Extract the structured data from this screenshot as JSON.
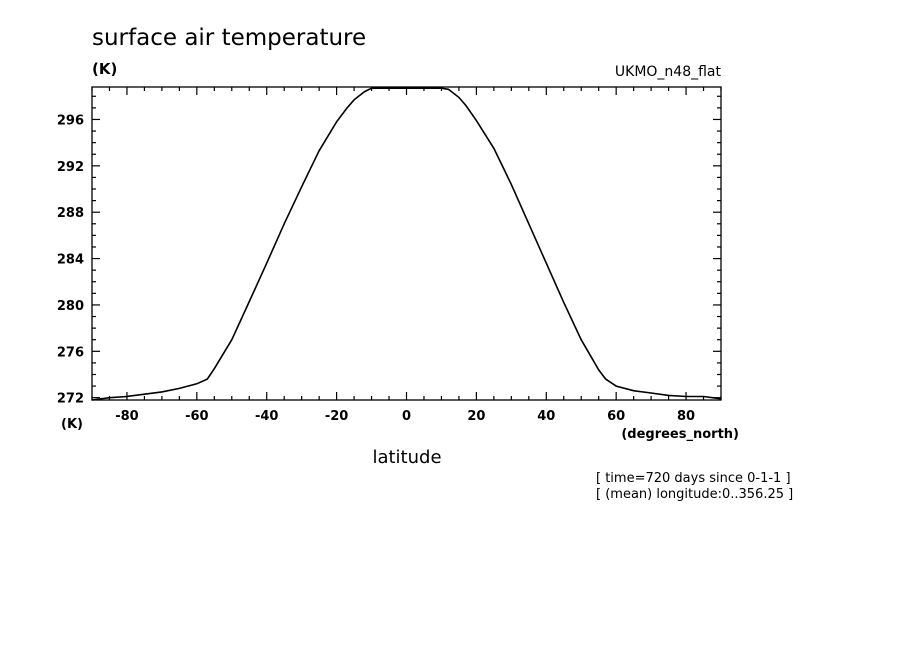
{
  "chart_data": {
    "type": "line",
    "title": "surface air temperature",
    "yunit": "(K)",
    "model_label": "UKMO_n48_flat",
    "xlabel": "latitude",
    "xunit": "(degrees_north)",
    "yunit_bottom": "(K)",
    "notes": [
      "[ time=720 days since 0-1-1 ]",
      "[ (mean) longitude:0..356.25 ]"
    ],
    "xlim": [
      -90,
      90
    ],
    "ylim": [
      271.8,
      298.8
    ],
    "xticks": [
      -80,
      -60,
      -40,
      -20,
      0,
      20,
      40,
      60,
      80
    ],
    "yticks": [
      272,
      276,
      280,
      284,
      288,
      292,
      296
    ],
    "series": [
      {
        "x": [
          -90,
          -85,
          -80,
          -75,
          -70,
          -65,
          -60,
          -57,
          -55,
          -50,
          -45,
          -40,
          -35,
          -30,
          -25,
          -20,
          -17,
          -15,
          -12,
          -10,
          -5,
          0,
          5,
          10,
          12,
          15,
          17,
          20,
          25,
          30,
          35,
          40,
          45,
          50,
          55,
          57,
          60,
          65,
          70,
          75,
          80,
          85,
          90
        ],
        "y": [
          271.8,
          272.0,
          272.1,
          272.3,
          272.5,
          272.8,
          273.2,
          273.6,
          274.5,
          277.0,
          280.3,
          283.6,
          287.0,
          290.2,
          293.3,
          295.8,
          297.0,
          297.7,
          298.4,
          298.7,
          298.7,
          298.7,
          298.7,
          298.7,
          298.6,
          297.9,
          297.2,
          295.9,
          293.5,
          290.4,
          287.0,
          283.6,
          280.2,
          277.0,
          274.4,
          273.6,
          273.0,
          272.6,
          272.4,
          272.2,
          272.1,
          272.1,
          271.9
        ]
      }
    ]
  }
}
